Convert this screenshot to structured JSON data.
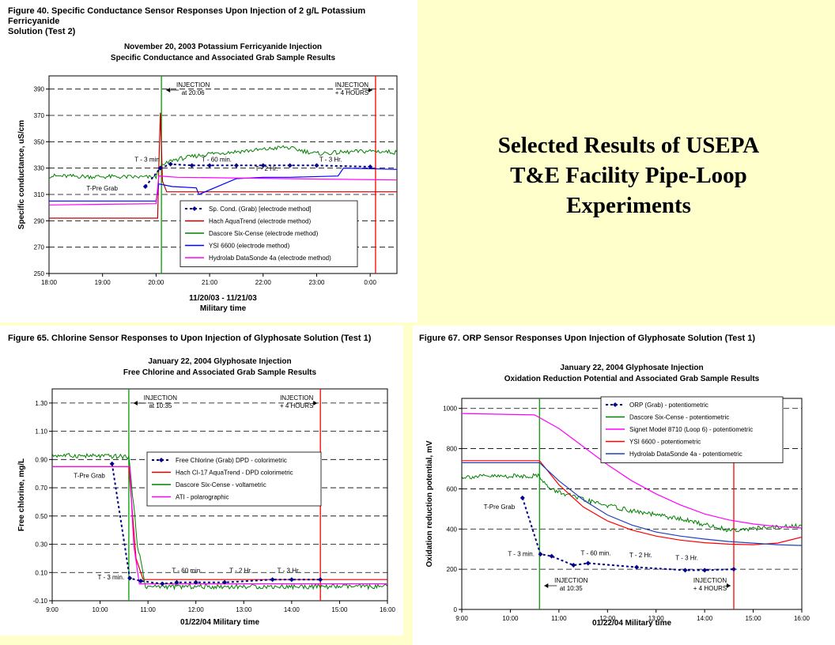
{
  "slide": {
    "title_lines": [
      "Selected Results of USEPA",
      "T&E Facility Pipe-Loop",
      "Experiments"
    ]
  },
  "figures": [
    {
      "title_lines": [
        "Figure 40. Specific Conductance Sensor Responses Upon Injection of 2 g/L Potassium Ferricyanide",
        "Solution (Test 2)"
      ]
    },
    {
      "title_lines": [
        "Figure 65. Chlorine Sensor Responses to Upon Injection of Glyphosate Solution (Test 1)"
      ]
    },
    {
      "title_lines": [
        "Figure 67. ORP Sensor Responses Upon Injection of Glyphosate Solution (Test 1)"
      ]
    }
  ],
  "chart_data": [
    {
      "type": "line",
      "title": "November 20, 2003 Potassium Ferricyanide Injection",
      "subtitle": "Specific Conductance and Associated Grab Sample Results",
      "xlabel": "11/20/03 - 11/21/03",
      "xlabel2": "Military time",
      "ylabel": "Specific conductance, uS/cm",
      "xlim": [
        18.0,
        24.5
      ],
      "ylim": [
        250,
        400
      ],
      "xticks": [
        "18:00",
        "19:00",
        "20:00",
        "21:00",
        "22:00",
        "23:00",
        "0:00",
        ""
      ],
      "yticks": [
        "250",
        "270",
        "290",
        "310",
        "330",
        "350",
        "370",
        "390"
      ],
      "grid": "horizontal dashed",
      "legend_position": "center-right",
      "series": [
        {
          "name": "Sp. Cond. (Grab) [electrode method]",
          "color": "#00008b",
          "style": "dotted-markers",
          "x": [
            19.8,
            20.08,
            20.27,
            20.67,
            21.0,
            21.5,
            22.0,
            22.5,
            23.0,
            24.0
          ],
          "y": [
            316,
            330,
            333,
            332,
            332,
            332,
            332,
            332,
            332,
            331
          ]
        },
        {
          "name": "Hach AquaTrend (electrode method)",
          "color": "#c00000",
          "style": "line",
          "x": [
            18.0,
            20.03,
            20.05,
            20.08,
            20.12,
            20.2,
            24.5
          ],
          "y": [
            292,
            292,
            330,
            372,
            320,
            312,
            312
          ]
        },
        {
          "name": "Dascore Six-Cense (electrode method)",
          "color": "#008000",
          "style": "noisy-line",
          "x": [
            18.0,
            20.0,
            20.05,
            20.3,
            21.0,
            22.0,
            22.4,
            23.0,
            24.0,
            24.5
          ],
          "y": [
            324,
            323,
            330,
            336,
            341,
            344,
            346,
            341,
            343,
            342
          ]
        },
        {
          "name": "YSI 6600 (electrode method)",
          "color": "#0000ff",
          "style": "step-line",
          "x": [
            18.0,
            20.0,
            20.05,
            20.3,
            20.75,
            20.8,
            21.5,
            22.0,
            22.5,
            23.4,
            23.5,
            24.5
          ],
          "y": [
            305,
            305,
            318,
            316,
            315,
            310,
            322,
            323,
            323,
            324,
            330,
            329
          ]
        },
        {
          "name": "Hydrolab DataSonde 4a (electrode method)",
          "color": "#ff00ff",
          "style": "line",
          "x": [
            18.0,
            20.0,
            20.05,
            20.4,
            24.5
          ],
          "y": [
            302,
            303,
            324,
            323,
            321
          ]
        }
      ],
      "events": [
        {
          "x": 20.1,
          "color": "#00a000",
          "label_lines": [
            "INJECTION",
            "at 20:06"
          ],
          "arrow": "left"
        },
        {
          "x": 24.1,
          "color": "#ff0000",
          "label_lines": [
            "INJECTION",
            "+ 4 HOURS"
          ],
          "arrow": "right"
        }
      ],
      "annotations": [
        {
          "text": "T-Pre Grab",
          "x": 18.7,
          "y": 313
        },
        {
          "text": "T - 3 min",
          "x": 19.6,
          "y": 335
        },
        {
          "text": "T - 60 min.",
          "x": 20.85,
          "y": 335
        },
        {
          "text": "T - 2 Hr.",
          "x": 21.85,
          "y": 328
        },
        {
          "text": "T - 3 Hr.",
          "x": 23.05,
          "y": 335
        }
      ]
    },
    {
      "type": "line",
      "title": "January 22, 2004 Glyphosate Injection",
      "subtitle": "Free Chlorine and Associated Grab Sample Results",
      "xlabel": "01/22/04 Military time",
      "ylabel": "Free chlorine, mg/L",
      "xlim": [
        9.0,
        16.0
      ],
      "ylim": [
        -0.1,
        1.4
      ],
      "xticks": [
        "9:00",
        "10:00",
        "11:00",
        "12:00",
        "13:00",
        "14:00",
        "15:00",
        "16:00"
      ],
      "yticks": [
        "-0.10",
        "0.10",
        "0.30",
        "0.50",
        "0.70",
        "0.90",
        "1.10",
        "1.30"
      ],
      "grid": "horizontal dashed",
      "legend_position": "center-right",
      "series": [
        {
          "name": "Free Chlorine (Grab) DPD - colorimetric",
          "color": "#00008b",
          "style": "dotted-markers",
          "x": [
            10.25,
            10.62,
            10.85,
            11.3,
            11.6,
            12.0,
            12.6,
            13.6,
            14.0,
            14.6
          ],
          "y": [
            0.87,
            0.06,
            0.04,
            0.02,
            0.03,
            0.03,
            0.03,
            0.05,
            0.05,
            0.05
          ]
        },
        {
          "name": "Hach CI-17 AquaTrend - DPD colorimetric",
          "color": "#e00000",
          "style": "line",
          "x": [
            9.0,
            10.6,
            10.75,
            10.9,
            16.0
          ],
          "y": [
            0.85,
            0.85,
            0.2,
            0.05,
            0.05
          ]
        },
        {
          "name": "Dascore Six-Cense - voltametric",
          "color": "#008000",
          "style": "noisy-line",
          "x": [
            9.0,
            10.6,
            10.78,
            10.95,
            16.0
          ],
          "y": [
            0.93,
            0.92,
            0.3,
            0.0,
            0.0
          ]
        },
        {
          "name": "ATI - polarographic",
          "color": "#ff00ff",
          "style": "line",
          "x": [
            9.0,
            10.62,
            10.7,
            10.82,
            16.0
          ],
          "y": [
            0.85,
            0.85,
            0.3,
            0.02,
            0.02
          ]
        }
      ],
      "events": [
        {
          "x": 10.6,
          "color": "#00a000",
          "label_lines": [
            "INJECTION",
            "at 10:35"
          ],
          "arrow": "left"
        },
        {
          "x": 14.6,
          "color": "#ff0000",
          "label_lines": [
            "INJECTION",
            "+ 4 HOURS"
          ],
          "arrow": "right"
        }
      ],
      "annotations": [
        {
          "text": "T-Pre Grab",
          "x": 9.45,
          "y": 0.77
        },
        {
          "text": "T - 3 min.",
          "x": 9.95,
          "y": 0.05
        },
        {
          "text": "T - 60 min.",
          "x": 11.5,
          "y": 0.1
        },
        {
          "text": "T - 2 Hr.",
          "x": 12.7,
          "y": 0.1
        },
        {
          "text": "T - 3 Hr.",
          "x": 13.7,
          "y": 0.1
        }
      ]
    },
    {
      "type": "line",
      "title": "January 22, 2004 Glyphosate Injection",
      "subtitle": "Oxidation Reduction Potential and Associated Grab Sample Results",
      "xlabel": "01/22/04 Military time",
      "ylabel": "Oxidation reduction potential, mV",
      "xlim": [
        9.0,
        16.0
      ],
      "ylim": [
        0,
        1050
      ],
      "xticks": [
        "9:00",
        "10:00",
        "11:00",
        "12:00",
        "13:00",
        "14:00",
        "15:00",
        "16:00"
      ],
      "yticks": [
        "0",
        "200",
        "400",
        "600",
        "800",
        "1000"
      ],
      "grid": "horizontal dashed",
      "legend_position": "top-right",
      "series": [
        {
          "name": "ORP (Grab) - potentiometric",
          "color": "#00008b",
          "style": "dotted-markers",
          "x": [
            10.25,
            10.62,
            10.85,
            11.3,
            11.6,
            12.6,
            13.6,
            14.0,
            14.6
          ],
          "y": [
            555,
            275,
            265,
            220,
            230,
            210,
            195,
            195,
            200
          ]
        },
        {
          "name": "Dascore Six-Cense - potentiometric",
          "color": "#008000",
          "style": "noisy-line",
          "x": [
            9.0,
            10.6,
            10.8,
            11.5,
            12.5,
            13.5,
            14.5,
            15.5,
            16.0
          ],
          "y": [
            660,
            665,
            600,
            545,
            490,
            450,
            395,
            410,
            415
          ]
        },
        {
          "name": "Signet Model 8710 (Loop 6) - potentiometric",
          "color": "#ff00ff",
          "style": "line",
          "x": [
            9.0,
            10.5,
            11.0,
            11.5,
            12.0,
            12.5,
            13.0,
            13.5,
            14.0,
            14.5,
            15.0,
            15.5,
            16.0
          ],
          "y": [
            975,
            968,
            900,
            810,
            720,
            640,
            575,
            520,
            475,
            445,
            425,
            412,
            405
          ]
        },
        {
          "name": "YSI 6600 - potentiometric",
          "color": "#ff0000",
          "style": "line",
          "x": [
            9.0,
            10.6,
            11.0,
            11.5,
            12.0,
            12.5,
            13.0,
            13.5,
            14.0,
            14.5,
            15.0,
            15.5,
            16.0
          ],
          "y": [
            740,
            740,
            620,
            510,
            440,
            395,
            365,
            345,
            332,
            325,
            322,
            330,
            360
          ]
        },
        {
          "name": "Hydrolab DataSonde 4a - potentiometric",
          "color": "#2040c0",
          "style": "line",
          "x": [
            9.0,
            10.6,
            11.0,
            11.5,
            12.0,
            12.5,
            13.0,
            13.5,
            14.0,
            14.5,
            15.0,
            15.5,
            16.0
          ],
          "y": [
            730,
            730,
            640,
            545,
            470,
            420,
            385,
            365,
            350,
            338,
            330,
            322,
            318
          ]
        }
      ],
      "events": [
        {
          "x": 10.6,
          "color": "#00a000",
          "label_lines": [
            "INJECTION",
            "at 10:35"
          ],
          "arrow": "left"
        },
        {
          "x": 14.6,
          "color": "#ff0000",
          "label_lines": [
            "INJECTION",
            "+ 4 HOURS"
          ],
          "arrow": "right"
        }
      ],
      "annotations": [
        {
          "text": "T-Pre Grab",
          "x": 9.45,
          "y": 500
        },
        {
          "text": "T - 3 min.",
          "x": 9.95,
          "y": 265
        },
        {
          "text": "T - 60 min.",
          "x": 11.45,
          "y": 270
        },
        {
          "text": "T - 2 Hr.",
          "x": 12.45,
          "y": 260
        },
        {
          "text": "T - 3 Hr.",
          "x": 13.4,
          "y": 245
        }
      ]
    }
  ]
}
